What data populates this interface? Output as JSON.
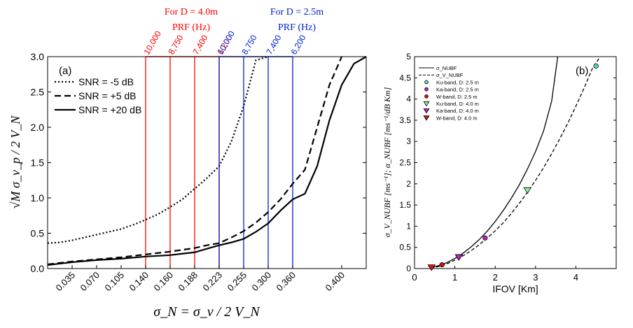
{
  "chart_data": [
    {
      "panel_label": "(a)",
      "type": "line",
      "xlabel": "σ_N = σ_v / 2 V_N",
      "ylabel": "√M σ_v_p / 2 V_N",
      "ylim": [
        0,
        3.0
      ],
      "x_tick_labels": [
        "0.035",
        "0.070",
        "0.105",
        "0.140",
        "0.160",
        "0.188",
        "0.223",
        "0.255",
        "0.300",
        "0.360",
        "0.400"
      ],
      "y_tick_labels": [
        "0.0",
        "0.5",
        "1.0",
        "1.5",
        "2.0",
        "2.5",
        "3.0"
      ],
      "legend": {
        "placement": "top-left",
        "entries": [
          "SNR = -5  dB",
          "SNR = +5  dB",
          "SNR = +20 dB"
        ]
      },
      "series": [
        {
          "name": "SNR = -5  dB",
          "style": "dotted",
          "x": [
            0,
            0.5,
            1,
            1.5,
            2,
            2.5,
            3,
            3.5,
            4,
            4.5,
            5,
            5.5,
            6,
            6.5,
            7,
            7.5,
            8,
            8.5,
            9
          ],
          "y": [
            0.36,
            0.37,
            0.4,
            0.44,
            0.48,
            0.52,
            0.56,
            0.62,
            0.69,
            0.77,
            0.87,
            0.98,
            1.13,
            1.28,
            1.45,
            1.8,
            2.3,
            2.95,
            3.0
          ]
        },
        {
          "name": "SNR = +5  dB",
          "style": "dashed",
          "x": [
            0,
            1,
            2,
            3,
            4,
            5,
            6,
            6.5,
            7,
            7.5,
            8,
            8.5,
            9,
            9.5,
            10,
            10.5,
            11,
            11.5,
            12
          ],
          "y": [
            0.06,
            0.1,
            0.13,
            0.16,
            0.2,
            0.24,
            0.29,
            0.33,
            0.36,
            0.44,
            0.53,
            0.65,
            0.8,
            0.98,
            1.2,
            1.4,
            2.0,
            2.6,
            3.0
          ]
        },
        {
          "name": "SNR = +20 dB",
          "style": "solid",
          "x": [
            0,
            1,
            2,
            3,
            4,
            5,
            6,
            6.5,
            7,
            7.5,
            8,
            8.5,
            9,
            9.5,
            10,
            10.5,
            11,
            11.5,
            12,
            12.5,
            13
          ],
          "y": [
            0.05,
            0.09,
            0.12,
            0.14,
            0.17,
            0.19,
            0.23,
            0.28,
            0.33,
            0.37,
            0.42,
            0.52,
            0.64,
            0.82,
            0.98,
            1.06,
            1.45,
            2.1,
            2.6,
            2.9,
            3.0
          ]
        }
      ],
      "prf_groups": [
        {
          "title_line1": "For D = 4.0m",
          "title_line2": "PRF (Hz)",
          "color": "#ff0000",
          "labels": [
            "10,000",
            "8,750",
            "7,400",
            "6,200"
          ],
          "x_positions": [
            "0.140",
            "0.160",
            "0.188",
            "0.223"
          ]
        },
        {
          "title_line1": "For D = 2.5m",
          "title_line2": "PRF (Hz)",
          "color": "#0022cc",
          "labels": [
            "10,000",
            "8,750",
            "7,400",
            "6,200"
          ],
          "x_positions": [
            "0.223",
            "0.255",
            "0.300",
            "0.360"
          ]
        }
      ]
    },
    {
      "panel_label": "(b)",
      "type": "line",
      "xlabel": "IFOV [Km]",
      "ylabel": "σ_V_NUBF [ms⁻¹]; α_NUBF [ms⁻¹/dB Km]",
      "xlim": [
        0,
        5
      ],
      "ylim": [
        0,
        5
      ],
      "x_tick_labels": [
        "0",
        "1",
        "2",
        "3",
        "4"
      ],
      "y_tick_labels": [
        "0",
        "0.5",
        "1",
        "1.5",
        "2",
        "2.5",
        "3",
        "3.5",
        "4",
        "4.5",
        "5"
      ],
      "legend": {
        "placement": "top-left",
        "entries": [
          {
            "label": "σ_NUBF",
            "style": "solid"
          },
          {
            "label": "σ_V_NUBF",
            "style": "dashed"
          },
          {
            "label": "Ku-band, D: 2.5 m",
            "marker": "circle",
            "color": "#55e0b8"
          },
          {
            "label": "Ka-band, D: 2.5 m",
            "marker": "circle",
            "color": "#c020c0"
          },
          {
            "label": "W-band, D: 2.5 m",
            "marker": "circle",
            "color": "#e01010"
          },
          {
            "label": "Ku-band, D: 4.0 m",
            "marker": "triangle",
            "color": "#90f0a0"
          },
          {
            "label": "Ka-band, D: 4.0 m",
            "marker": "triangle",
            "color": "#c020c0"
          },
          {
            "label": "W-band, D: 4.0 m",
            "marker": "triangle",
            "color": "#e01010"
          }
        ]
      },
      "series": [
        {
          "name": "σ_NUBF",
          "style": "solid",
          "x": [
            0.4,
            0.6,
            0.8,
            1.0,
            1.2,
            1.4,
            1.6,
            1.8,
            2.0,
            2.2,
            2.4,
            2.6,
            2.8,
            3.0,
            3.2,
            3.4,
            3.55
          ],
          "y": [
            0.02,
            0.07,
            0.14,
            0.24,
            0.36,
            0.51,
            0.68,
            0.88,
            1.11,
            1.37,
            1.66,
            1.98,
            2.35,
            2.76,
            3.25,
            3.95,
            5.0
          ]
        },
        {
          "name": "σ_V_NUBF",
          "style": "dashed",
          "x": [
            0.4,
            0.6,
            0.8,
            1.0,
            1.2,
            1.4,
            1.6,
            1.8,
            2.0,
            2.2,
            2.4,
            2.6,
            2.8,
            3.0,
            3.2,
            3.4,
            3.6,
            3.8,
            4.0,
            4.2,
            4.4,
            4.6
          ],
          "y": [
            0.01,
            0.05,
            0.11,
            0.2,
            0.3,
            0.42,
            0.56,
            0.72,
            0.89,
            1.08,
            1.3,
            1.54,
            1.8,
            2.08,
            2.38,
            2.71,
            3.06,
            3.43,
            3.83,
            4.25,
            4.7,
            5.0
          ]
        }
      ],
      "points": [
        {
          "label": "Ku-band, D: 2.5 m",
          "x": 4.5,
          "y": 4.78,
          "marker": "circle",
          "color": "#55e0b8"
        },
        {
          "label": "Ka-band, D: 2.5 m",
          "x": 1.75,
          "y": 0.72,
          "marker": "circle",
          "color": "#c020c0"
        },
        {
          "label": "W-band, D: 2.5 m",
          "x": 0.68,
          "y": 0.09,
          "marker": "circle",
          "color": "#e01010"
        },
        {
          "label": "Ku-band, D: 4.0 m",
          "x": 2.8,
          "y": 1.85,
          "marker": "triangle",
          "color": "#90f0a0"
        },
        {
          "label": "Ka-band, D: 4.0 m",
          "x": 1.1,
          "y": 0.27,
          "marker": "triangle",
          "color": "#c020c0"
        },
        {
          "label": "W-band, D: 4.0 m",
          "x": 0.42,
          "y": 0.03,
          "marker": "triangle",
          "color": "#e01010"
        }
      ]
    }
  ]
}
